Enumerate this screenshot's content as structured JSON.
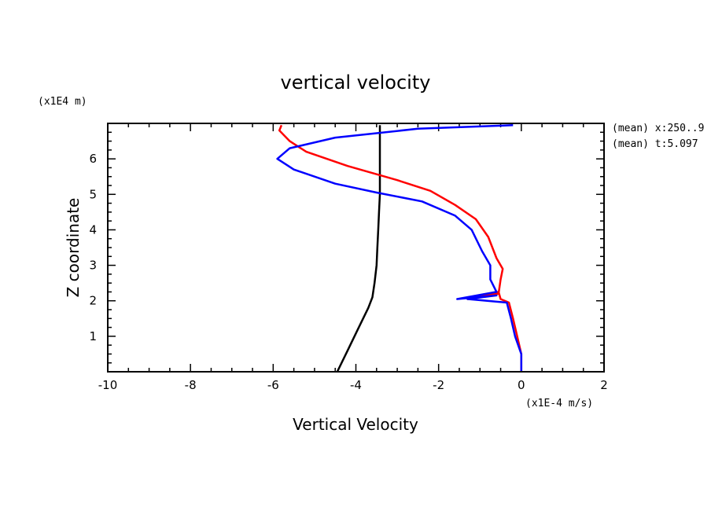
{
  "chart_data": {
    "type": "line",
    "title": "vertical velocity",
    "xlabel": "Vertical Velocity",
    "ylabel": "Z coordinate",
    "x_unit": "(x1E-4 m/s)",
    "y_unit": "(x1E4 m)",
    "xlim": [
      -10,
      2
    ],
    "ylim": [
      0,
      7
    ],
    "x_ticks": [
      "-10",
      "-8",
      "-6",
      "-4",
      "-2",
      "0",
      "2"
    ],
    "y_ticks": [
      "1",
      "2",
      "3",
      "4",
      "5",
      "6"
    ],
    "annotations": [
      "(mean) x:250..9",
      "(mean) t:5.097"
    ],
    "grid": false,
    "series": [
      {
        "color": "#000000",
        "points": [
          [
            -4.45,
            0.0
          ],
          [
            -4.2,
            0.6
          ],
          [
            -3.95,
            1.2
          ],
          [
            -3.7,
            1.8
          ],
          [
            -3.6,
            2.1
          ],
          [
            -3.55,
            2.5
          ],
          [
            -3.5,
            3.0
          ],
          [
            -3.48,
            3.5
          ],
          [
            -3.46,
            4.0
          ],
          [
            -3.44,
            4.5
          ],
          [
            -3.42,
            5.0
          ],
          [
            -3.42,
            5.5
          ],
          [
            -3.42,
            6.0
          ],
          [
            -3.42,
            6.5
          ],
          [
            -3.42,
            6.95
          ]
        ]
      },
      {
        "color": "#ff0000",
        "points": [
          [
            0.0,
            0.0
          ],
          [
            0.0,
            0.5
          ],
          [
            -0.1,
            1.0
          ],
          [
            -0.2,
            1.5
          ],
          [
            -0.3,
            1.95
          ],
          [
            -0.5,
            2.05
          ],
          [
            -0.55,
            2.25
          ],
          [
            -1.3,
            2.05
          ],
          [
            -0.55,
            2.2
          ],
          [
            -0.5,
            2.6
          ],
          [
            -0.45,
            2.9
          ],
          [
            -0.6,
            3.2
          ],
          [
            -0.8,
            3.8
          ],
          [
            -1.1,
            4.3
          ],
          [
            -1.6,
            4.7
          ],
          [
            -2.2,
            5.1
          ],
          [
            -3.0,
            5.4
          ],
          [
            -4.2,
            5.8
          ],
          [
            -5.2,
            6.2
          ],
          [
            -5.6,
            6.5
          ],
          [
            -5.85,
            6.8
          ],
          [
            -5.8,
            6.95
          ]
        ]
      },
      {
        "color": "#0000ff",
        "points": [
          [
            0.0,
            0.0
          ],
          [
            0.0,
            0.5
          ],
          [
            -0.15,
            1.0
          ],
          [
            -0.25,
            1.5
          ],
          [
            -0.35,
            1.95
          ],
          [
            -1.3,
            2.05
          ],
          [
            -0.6,
            2.15
          ],
          [
            -1.55,
            2.05
          ],
          [
            -0.6,
            2.25
          ],
          [
            -0.75,
            2.6
          ],
          [
            -0.75,
            3.0
          ],
          [
            -0.95,
            3.4
          ],
          [
            -1.2,
            4.0
          ],
          [
            -1.6,
            4.4
          ],
          [
            -2.4,
            4.8
          ],
          [
            -3.5,
            5.05
          ],
          [
            -4.5,
            5.3
          ],
          [
            -5.5,
            5.7
          ],
          [
            -5.9,
            6.0
          ],
          [
            -5.6,
            6.3
          ],
          [
            -4.5,
            6.6
          ],
          [
            -2.5,
            6.85
          ],
          [
            -0.2,
            6.95
          ]
        ]
      }
    ]
  }
}
